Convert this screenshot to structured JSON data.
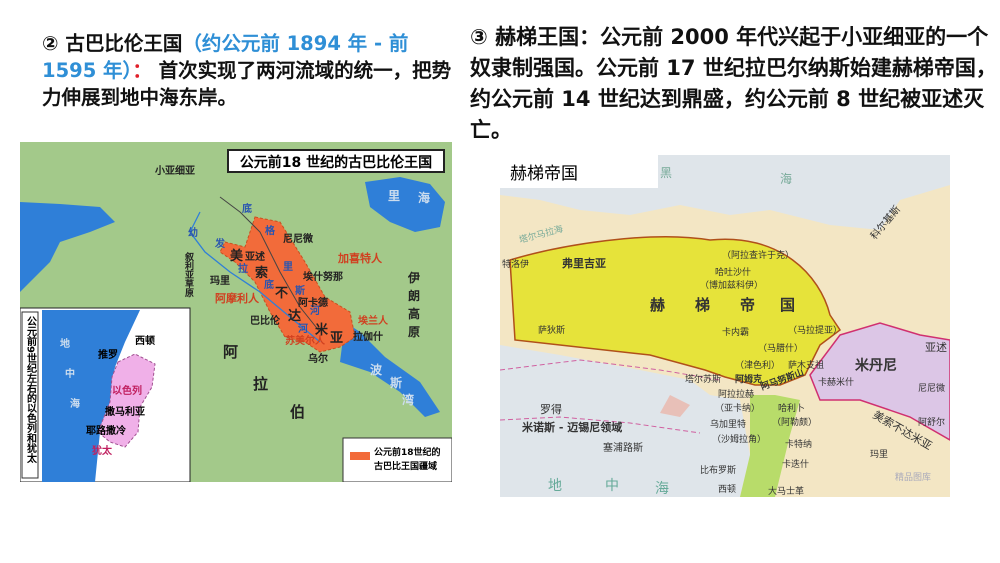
{
  "left": {
    "heading": {
      "number": "②",
      "title": "古巴比伦王国",
      "dates": "（约公元前 1894 年 - 前 1595 年）",
      "colon": "：",
      "body": "首次实现了两河流域的统一，把势力伸展到地中海东岸。"
    },
    "map": {
      "title": "公元前18 世纪的古巴比伦王国",
      "labels": {
        "asia_minor": "小亚细亚",
        "caspian_1": "里",
        "caspian_2": "海",
        "tigris_1": "底",
        "tigris_2": "格",
        "tigris_3": "里",
        "tigris_4": "斯",
        "tigris_5": "河",
        "euphrates_1": "幼",
        "euphrates_2": "发",
        "euphrates_3": "拉",
        "euphrates_4": "底",
        "euphrates_5": "河",
        "nineveh": "尼尼微",
        "assur": "亚述",
        "kassites": "加喜特人",
        "mari": "玛里",
        "eshnunna": "埃什努那",
        "syrian_steppe": "叙利亚草原",
        "meso_1": "美",
        "meso_2": "索",
        "meso_3": "不",
        "meso_4": "达",
        "meso_5": "米",
        "meso_6": "亚",
        "akkad": "阿卡德",
        "amorites": "阿摩利人",
        "babylon": "巴比伦",
        "elamites": "埃兰人",
        "sumerians": "苏美尔人",
        "lagash": "拉伽什",
        "ur": "乌尔",
        "iran_1": "伊",
        "iran_2": "朗",
        "iran_3": "高",
        "iran_4": "原",
        "arabia_1": "阿",
        "arabia_2": "拉",
        "arabia_3": "伯",
        "gulf_1": "波",
        "gulf_2": "斯",
        "gulf_3": "湾"
      },
      "inset": {
        "title": "公元前9世纪左右的以色列和犹太",
        "sea_1": "地",
        "sea_2": "中",
        "sea_3": "海",
        "sidon": "西顿",
        "tyre": "推罗",
        "israel": "以色列",
        "samaria": "撒马利亚",
        "jerusalem": "耶路撒冷",
        "judah": "犹太"
      },
      "legend": {
        "line1": "公元前18世纪的",
        "line2": "古巴比王国疆域"
      }
    }
  },
  "right": {
    "heading": {
      "number": "③",
      "text": "赫梯王国：公元前 2000 年代兴起于小亚细亚的一个奴隶制强国。公元前 17 世纪拉巴尔纳斯始建赫梯帝国，约公元前 14 世纪达到鼎盛，约公元前 8 世纪被亚述灭亡。"
    },
    "map": {
      "title": "赫梯帝国",
      "labels": {
        "black_sea_1": "黑",
        "black_sea_2": "海",
        "colchis": "科尔基斯",
        "phrygia": "弗里吉亚",
        "troy": "特洛伊",
        "arzawa_lake": "塔尔马拉海",
        "hittite_1": "赫",
        "hittite_2": "梯",
        "hittite_3": "帝",
        "hittite_4": "国",
        "arinna": "（阿拉查许于克）",
        "hattusa": "哈吐沙什",
        "bogazkoy": "（博加兹科伊）",
        "sardis": "萨狄斯",
        "kanesh": "卡内霸",
        "malatya": "（马拉提亚）",
        "marash": "（马腊什）",
        "zincirli": "（津色利）",
        "samal": "萨木支祖",
        "tarsus": "塔尔苏斯",
        "amuq": "阿姆克",
        "amanus": "阿马努斯山",
        "carchemish": "卡赫米什",
        "alalakh": "阿拉拉赫",
        "atchana": "（亚卡纳）",
        "ugarit": "乌加里特",
        "shamra": "（沙姆拉角）",
        "aleppo": "哈利卜",
        "aleppo2": "（阿勒颇）",
        "mitanni": "米丹尼",
        "nineveh": "尼尼微",
        "assur": "阿舒尔",
        "assyria": "亚述",
        "mesopotamia": "美索不达米亚",
        "mari": "玛里",
        "qatna": "卡特纳",
        "kadesh": "卡迭什",
        "rhodes": "罗得",
        "minoan": "米诺斯 - 迈锡尼领域",
        "cyprus": "塞浦路斯",
        "byblos": "比布罗斯",
        "sidon": "西顿",
        "damascus": "大马士革",
        "med_1": "地",
        "med_2": "中",
        "med_3": "海"
      },
      "watermark": "精品图库"
    }
  },
  "colors": {
    "heading_text": "#111111",
    "date_blue": "#2f8fd6",
    "colon_red": "#e0202a",
    "babylon_orange": "#f26b3a",
    "sea_blue": "#2f7fd8",
    "land_green": "#a3c98a",
    "hittite_yellow": "#e6e33a",
    "mitanni_pink": "#dcc6e6",
    "israel_pink": "#f0b0e8"
  }
}
